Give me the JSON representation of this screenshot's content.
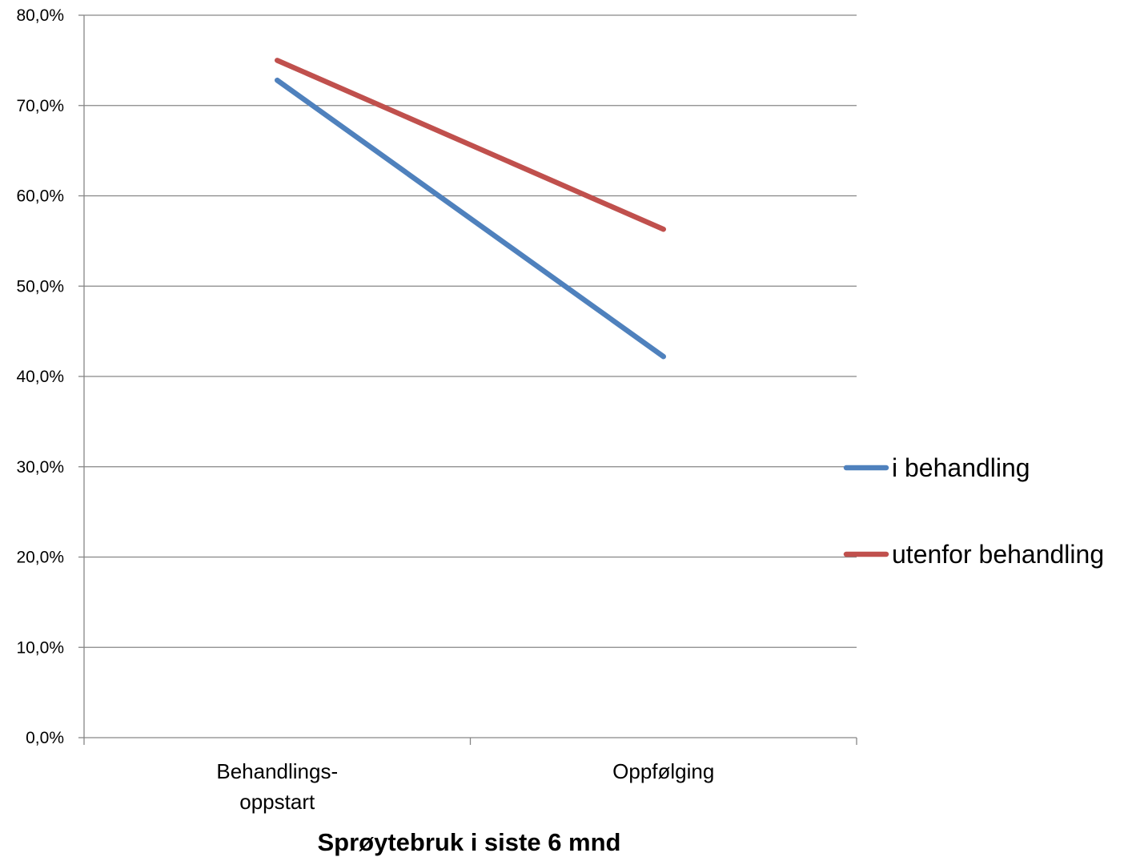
{
  "chart_data": {
    "type": "line",
    "title": "",
    "xlabel": "Sprøytebruk i siste 6 mnd",
    "ylabel": "",
    "categories": [
      [
        "Behandlings-",
        "oppstart"
      ],
      [
        "Oppfølging"
      ]
    ],
    "series": [
      {
        "name": "i behandling",
        "values": [
          72.8,
          42.2
        ],
        "color": "#4F81BD"
      },
      {
        "name": "utenfor behandling",
        "values": [
          75.0,
          56.3
        ],
        "color": "#C0504D"
      }
    ],
    "ylim": [
      0,
      80
    ],
    "yticks": [
      0,
      10,
      20,
      30,
      40,
      50,
      60,
      70,
      80
    ],
    "ytick_labels": [
      "0,0%",
      "10,0%",
      "20,0%",
      "30,0%",
      "40,0%",
      "50,0%",
      "60,0%",
      "70,0%",
      "80,0%"
    ],
    "grid": true,
    "legend_position": "right",
    "colors": {
      "gridline": "#868686",
      "axis": "#868686"
    }
  }
}
